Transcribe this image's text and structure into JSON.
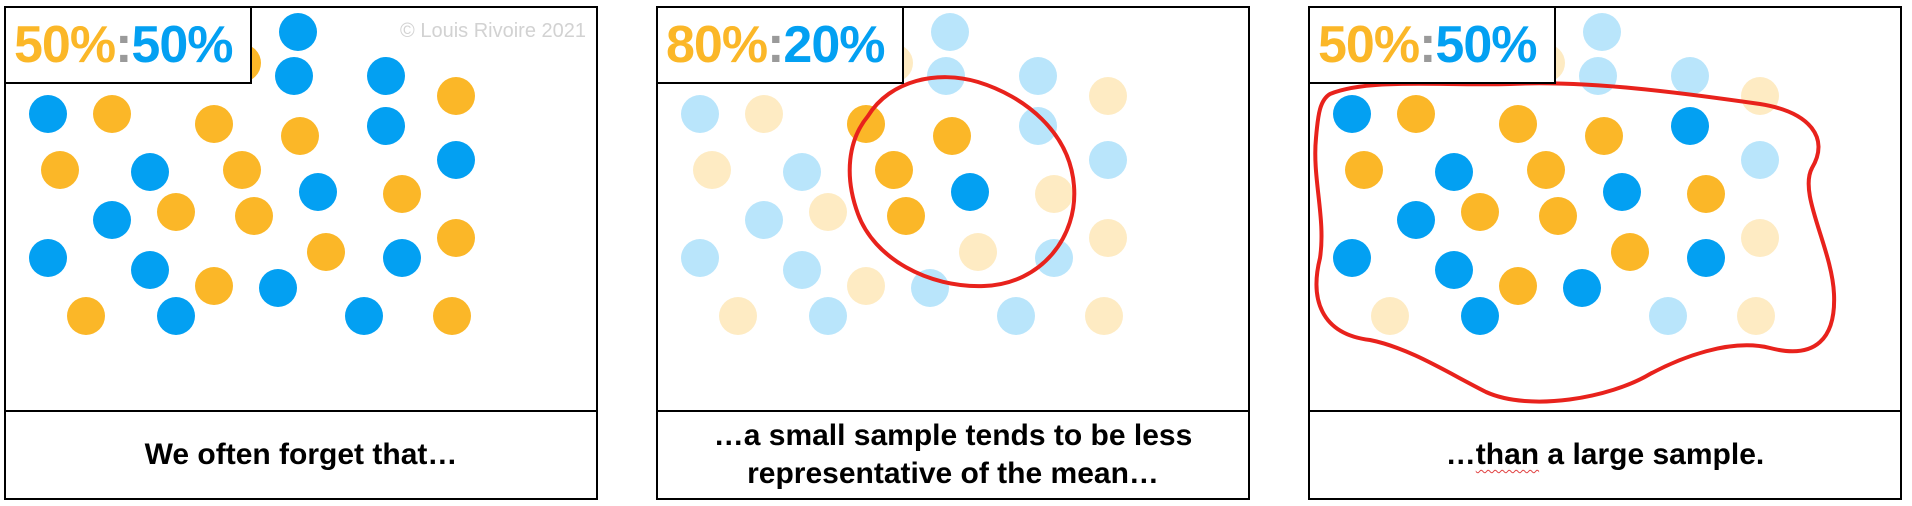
{
  "colors": {
    "orange": "#FBB728",
    "blue": "#03A0F2",
    "grey": "#9A9A9A",
    "outline": "#E8221C"
  },
  "credit": "© Louis Rivoire 2021",
  "panels": [
    {
      "ratio_a": "50%",
      "ratio_sep": ":",
      "ratio_b": "50%",
      "caption_line1": "We often forget that…",
      "caption_line2": "",
      "highlight": "none"
    },
    {
      "ratio_a": "80%",
      "ratio_sep": ":",
      "ratio_b": "20%",
      "caption_line1": "…a small sample tends to be less",
      "caption_line2": "representative of the mean…",
      "highlight": "small sample outlined"
    },
    {
      "ratio_a": "50%",
      "ratio_sep": ":",
      "ratio_b": "50%",
      "caption_pre": "…",
      "caption_typo": "than",
      "caption_post": " a large sample.",
      "highlight": "large sample outlined"
    }
  ]
}
